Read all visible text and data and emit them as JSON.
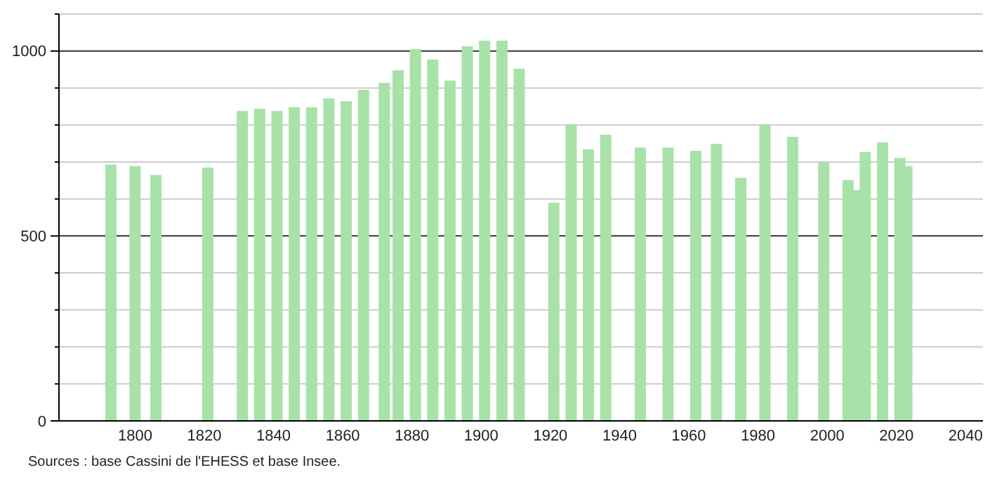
{
  "chart_data": {
    "type": "bar",
    "x": [
      1793,
      1800,
      1806,
      1821,
      1831,
      1836,
      1841,
      1846,
      1851,
      1856,
      1861,
      1866,
      1872,
      1876,
      1881,
      1886,
      1891,
      1896,
      1901,
      1906,
      1911,
      1921,
      1926,
      1931,
      1936,
      1946,
      1954,
      1962,
      1968,
      1975,
      1982,
      1990,
      1999,
      2006,
      2008,
      2011,
      2016,
      2021,
      2023
    ],
    "values": [
      693,
      689,
      665,
      685,
      838,
      844,
      838,
      848,
      848,
      872,
      864,
      895,
      914,
      948,
      1005,
      977,
      920,
      1013,
      1028,
      1028,
      952,
      590,
      802,
      734,
      774,
      739,
      739,
      730,
      749,
      657,
      802,
      768,
      698,
      651,
      624,
      727,
      753,
      711,
      689
    ],
    "color": "#a8e2a8",
    "xlim": [
      1778,
      2045
    ],
    "xticks": [
      1800,
      1820,
      1840,
      1860,
      1880,
      1900,
      1920,
      1940,
      1960,
      1980,
      2000,
      2020,
      2040
    ],
    "ylim": [
      0,
      1100
    ],
    "yticks": [
      0,
      {
        "value": 100,
        "label": null
      },
      {
        "value": 200,
        "label": null
      },
      {
        "value": 300,
        "label": null
      },
      {
        "value": 400,
        "label": null
      },
      500,
      {
        "value": 600,
        "label": null
      },
      {
        "value": 700,
        "label": null
      },
      {
        "value": 800,
        "label": null
      },
      {
        "value": 900,
        "label": null
      },
      1000,
      {
        "value": 1100,
        "label": null
      }
    ],
    "grid": "y",
    "annotations": [
      "Sources : base Cassini de l'EHESS et base Insee."
    ]
  }
}
